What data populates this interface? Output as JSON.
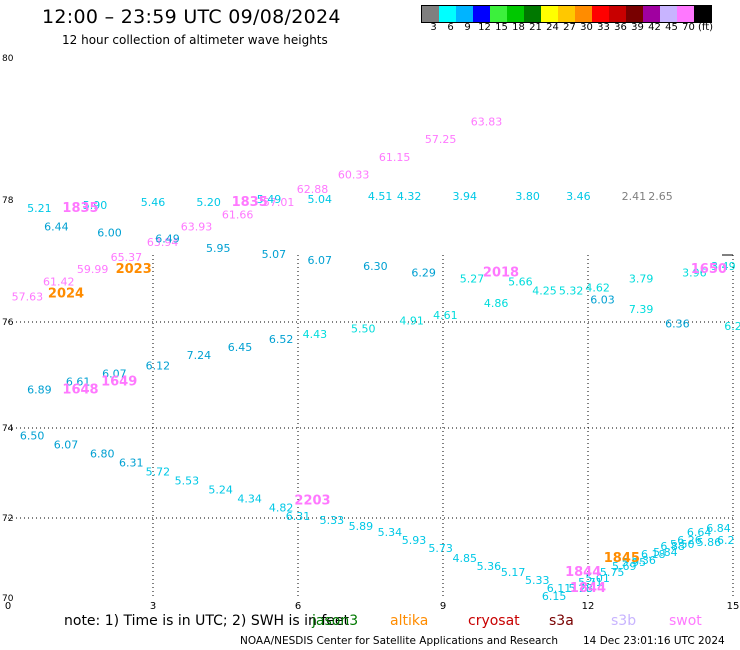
{
  "header": {
    "title": "12:00 – 23:59 UTC 09/08/2024",
    "subtitle": "12 hour collection of altimeter wave heights"
  },
  "color_scale": {
    "colors": [
      "#7f7f7f",
      "#00ffff",
      "#00b4ff",
      "#0000ff",
      "#3cf03c",
      "#00c800",
      "#007800",
      "#ffff00",
      "#ffc800",
      "#ff8c00",
      "#ff0000",
      "#c80000",
      "#780000",
      "#a000a0",
      "#c8b4ff",
      "#ff78ff",
      "#000000"
    ],
    "labels": [
      "3",
      "6",
      "9",
      "12",
      "15",
      "18",
      "21",
      "24",
      "27",
      "30",
      "33",
      "36",
      "39",
      "42",
      "45",
      "70",
      "(ft)"
    ]
  },
  "footer": {
    "note": "note:  1) Time is in UTC; 2) SWH is in feet",
    "credit": "NOAA/NESDIS Center for Satellite Applications and Research",
    "timestamp": "14 Dec 23:01:16 UTC 2024"
  },
  "satellites": [
    {
      "name": "jason3",
      "color": "#007800"
    },
    {
      "name": "altika",
      "color": "#ff8c00"
    },
    {
      "name": "cryosat",
      "color": "#c80000"
    },
    {
      "name": "s3a",
      "color": "#780000"
    },
    {
      "name": "s3b",
      "color": "#c8b4ff"
    },
    {
      "name": "swot",
      "color": "#ff78ff"
    }
  ],
  "chart_data": {
    "type": "scatter",
    "title": "12:00 – 23:59 UTC 09/08/2024",
    "xlim": [
      0,
      15
    ],
    "ylim": [
      70,
      80
    ],
    "x_ticks": [
      "0",
      "3",
      "6",
      "9",
      "12",
      "15"
    ],
    "y_ticks": [
      "70",
      "72",
      "74",
      "76",
      "78",
      "80"
    ],
    "grid": true,
    "legend": "bottom",
    "track_labels": [
      {
        "text": "1835",
        "x": 1.5,
        "y": 77.8,
        "sat": "swot"
      },
      {
        "text": "1835",
        "x": 5.0,
        "y": 77.9,
        "sat": "swot"
      },
      {
        "text": "2023",
        "x": 2.6,
        "y": 76.8,
        "sat": "altika"
      },
      {
        "text": "2024",
        "x": 1.2,
        "y": 76.4,
        "sat": "altika"
      },
      {
        "text": "2018",
        "x": 10.2,
        "y": 76.75,
        "sat": "swot"
      },
      {
        "text": "1650",
        "x": 14.5,
        "y": 76.8,
        "sat": "swot"
      },
      {
        "text": "1648",
        "x": 1.5,
        "y": 74.65,
        "sat": "swot"
      },
      {
        "text": "1649",
        "x": 2.3,
        "y": 74.8,
        "sat": "swot"
      },
      {
        "text": "2203",
        "x": 6.3,
        "y": 72.3,
        "sat": "swot"
      },
      {
        "text": "1844",
        "x": 11.9,
        "y": 70.55,
        "sat": "swot"
      },
      {
        "text": "1845",
        "x": 12.7,
        "y": 70.9,
        "sat": "altika"
      },
      {
        "text": "1844",
        "x": 12.0,
        "y": 70.15,
        "sat": "swot"
      }
    ],
    "series": [
      {
        "name": "swot",
        "color": "#ff78ff",
        "points": [
          {
            "x": 0.4,
            "y": 76.35,
            "v": "57.63"
          },
          {
            "x": 1.05,
            "y": 76.6,
            "v": "61.42"
          },
          {
            "x": 1.75,
            "y": 76.8,
            "v": "59.99"
          },
          {
            "x": 2.45,
            "y": 77.0,
            "v": "65.37"
          },
          {
            "x": 3.2,
            "y": 77.25,
            "v": "63.94"
          },
          {
            "x": 3.9,
            "y": 77.5,
            "v": "63.93"
          },
          {
            "x": 4.75,
            "y": 77.7,
            "v": "61.66"
          },
          {
            "x": 5.6,
            "y": 77.9,
            "v": "57.01"
          },
          {
            "x": 6.3,
            "y": 78.1,
            "v": "62.88"
          },
          {
            "x": 7.15,
            "y": 78.3,
            "v": "60.33"
          },
          {
            "x": 8.0,
            "y": 78.55,
            "v": "61.15"
          },
          {
            "x": 8.95,
            "y": 78.8,
            "v": "57.25"
          },
          {
            "x": 9.9,
            "y": 79.05,
            "v": "63.83"
          }
        ]
      },
      {
        "name": "track-north",
        "color": "#00c8e6",
        "points": [
          {
            "x": 0.65,
            "y": 77.8,
            "v": "5.21"
          },
          {
            "x": 1.8,
            "y": 77.85,
            "v": "5.90"
          },
          {
            "x": 3.0,
            "y": 77.9,
            "v": "5.46"
          },
          {
            "x": 4.15,
            "y": 77.9,
            "v": "5.20"
          },
          {
            "x": 5.4,
            "y": 77.95,
            "v": "5.49"
          },
          {
            "x": 6.45,
            "y": 77.95,
            "v": "5.04"
          },
          {
            "x": 7.7,
            "y": 78.0,
            "v": "4.51"
          },
          {
            "x": 8.3,
            "y": 78.0,
            "v": "4.32"
          },
          {
            "x": 9.45,
            "y": 78.0,
            "v": "3.94"
          },
          {
            "x": 10.75,
            "y": 78.0,
            "v": "3.80"
          },
          {
            "x": 11.8,
            "y": 78.0,
            "v": "3.46"
          }
        ]
      },
      {
        "name": "track-north-gray",
        "color": "#7f7f7f",
        "points": [
          {
            "x": 12.95,
            "y": 78.0,
            "v": "2.41"
          },
          {
            "x": 13.5,
            "y": 78.0,
            "v": "2.65"
          }
        ]
      },
      {
        "name": "track-upper",
        "color": "#00a0d2",
        "points": [
          {
            "x": 1.0,
            "y": 77.5,
            "v": "6.44"
          },
          {
            "x": 2.1,
            "y": 77.4,
            "v": "6.00"
          },
          {
            "x": 3.3,
            "y": 77.3,
            "v": "6.49"
          },
          {
            "x": 4.35,
            "y": 77.15,
            "v": "5.95"
          },
          {
            "x": 5.5,
            "y": 77.05,
            "v": "5.07"
          },
          {
            "x": 6.45,
            "y": 76.95,
            "v": "6.07"
          },
          {
            "x": 7.6,
            "y": 76.85,
            "v": "6.30"
          },
          {
            "x": 8.6,
            "y": 76.75,
            "v": "6.29"
          },
          {
            "x": 12.3,
            "y": 76.3,
            "v": "6.03"
          },
          {
            "x": 13.85,
            "y": 75.9,
            "v": "6.36"
          }
        ]
      },
      {
        "name": "track-swot-2",
        "color": "#00dcdc",
        "points": [
          {
            "x": 9.6,
            "y": 76.65,
            "v": "5.27"
          },
          {
            "x": 10.6,
            "y": 76.6,
            "v": "5.66"
          },
          {
            "x": 11.1,
            "y": 76.45,
            "v": "4.25"
          },
          {
            "x": 11.65,
            "y": 76.45,
            "v": "5.32"
          },
          {
            "x": 12.2,
            "y": 76.5,
            "v": "4.62"
          },
          {
            "x": 13.1,
            "y": 76.65,
            "v": "3.79"
          },
          {
            "x": 14.2,
            "y": 76.75,
            "v": "3.96"
          },
          {
            "x": 14.8,
            "y": 76.85,
            "v": "3.49"
          },
          {
            "x": 10.1,
            "y": 76.25,
            "v": "4.86"
          },
          {
            "x": 13.1,
            "y": 76.15,
            "v": "7.39"
          },
          {
            "x": 15.0,
            "y": 75.85,
            "v": "6.2"
          }
        ]
      },
      {
        "name": "track-mid",
        "color": "#00dcdc",
        "points": [
          {
            "x": 6.35,
            "y": 75.7,
            "v": "4.43"
          },
          {
            "x": 7.35,
            "y": 75.8,
            "v": "5.50"
          },
          {
            "x": 8.35,
            "y": 75.95,
            "v": "4.91"
          },
          {
            "x": 9.05,
            "y": 76.05,
            "v": "4.61"
          }
        ]
      },
      {
        "name": "track-asc-west",
        "color": "#00a0d2",
        "points": [
          {
            "x": 0.65,
            "y": 74.65,
            "v": "6.89"
          },
          {
            "x": 1.45,
            "y": 74.8,
            "v": "6.61"
          },
          {
            "x": 2.2,
            "y": 74.95,
            "v": "6.07"
          },
          {
            "x": 3.1,
            "y": 75.1,
            "v": "6.12"
          },
          {
            "x": 3.95,
            "y": 75.3,
            "v": "7.24"
          },
          {
            "x": 4.8,
            "y": 75.45,
            "v": "6.45"
          },
          {
            "x": 5.65,
            "y": 75.6,
            "v": "6.52"
          }
        ]
      },
      {
        "name": "track-desc",
        "color": "#00a0d2",
        "points": [
          {
            "x": 0.5,
            "y": 73.75,
            "v": "6.50"
          },
          {
            "x": 1.2,
            "y": 73.55,
            "v": "6.07"
          },
          {
            "x": 1.95,
            "y": 73.35,
            "v": "6.80"
          },
          {
            "x": 2.55,
            "y": 73.15,
            "v": "6.31"
          }
        ]
      },
      {
        "name": "track-desc-2",
        "color": "#00c8e6",
        "points": [
          {
            "x": 3.1,
            "y": 72.95,
            "v": "5.72"
          },
          {
            "x": 3.7,
            "y": 72.75,
            "v": "5.53"
          },
          {
            "x": 4.4,
            "y": 72.55,
            "v": "5.24"
          },
          {
            "x": 5.0,
            "y": 72.35,
            "v": "4.34"
          },
          {
            "x": 5.65,
            "y": 72.15,
            "v": "4.82"
          },
          {
            "x": 6.0,
            "y": 71.95,
            "v": "6.31"
          },
          {
            "x": 6.7,
            "y": 71.85,
            "v": "5.33"
          },
          {
            "x": 7.3,
            "y": 71.7,
            "v": "5.89"
          },
          {
            "x": 7.9,
            "y": 71.55,
            "v": "5.34"
          },
          {
            "x": 8.4,
            "y": 71.35,
            "v": "5.93"
          },
          {
            "x": 8.95,
            "y": 71.15,
            "v": "5.73"
          },
          {
            "x": 9.45,
            "y": 70.9,
            "v": "4.85"
          },
          {
            "x": 9.95,
            "y": 70.7,
            "v": "5.36"
          },
          {
            "x": 10.45,
            "y": 70.55,
            "v": "5.17"
          },
          {
            "x": 10.95,
            "y": 70.35,
            "v": "5.33"
          },
          {
            "x": 11.4,
            "y": 70.15,
            "v": "6.11"
          },
          {
            "x": 11.3,
            "y": 69.95,
            "v": "6.15"
          },
          {
            "x": 11.85,
            "y": 70.15,
            "v": "5.28"
          },
          {
            "x": 12.05,
            "y": 70.3,
            "v": "5.71"
          },
          {
            "x": 12.2,
            "y": 70.4,
            "v": "5.01"
          },
          {
            "x": 12.5,
            "y": 70.55,
            "v": "5.75"
          },
          {
            "x": 12.75,
            "y": 70.7,
            "v": "5.69"
          },
          {
            "x": 12.95,
            "y": 70.8,
            "v": "5.95"
          },
          {
            "x": 13.15,
            "y": 70.85,
            "v": "5.36"
          },
          {
            "x": 13.35,
            "y": 71.0,
            "v": "6.18"
          },
          {
            "x": 13.6,
            "y": 71.05,
            "v": "5.84"
          },
          {
            "x": 13.75,
            "y": 71.2,
            "v": "6.88"
          },
          {
            "x": 13.95,
            "y": 71.25,
            "v": "5.50"
          },
          {
            "x": 14.1,
            "y": 71.35,
            "v": "6.26"
          },
          {
            "x": 14.5,
            "y": 71.3,
            "v": "5.86"
          },
          {
            "x": 14.3,
            "y": 71.55,
            "v": "6.64"
          },
          {
            "x": 14.7,
            "y": 71.65,
            "v": "6.84"
          },
          {
            "x": 14.85,
            "y": 71.35,
            "v": "6.2"
          }
        ]
      }
    ]
  }
}
